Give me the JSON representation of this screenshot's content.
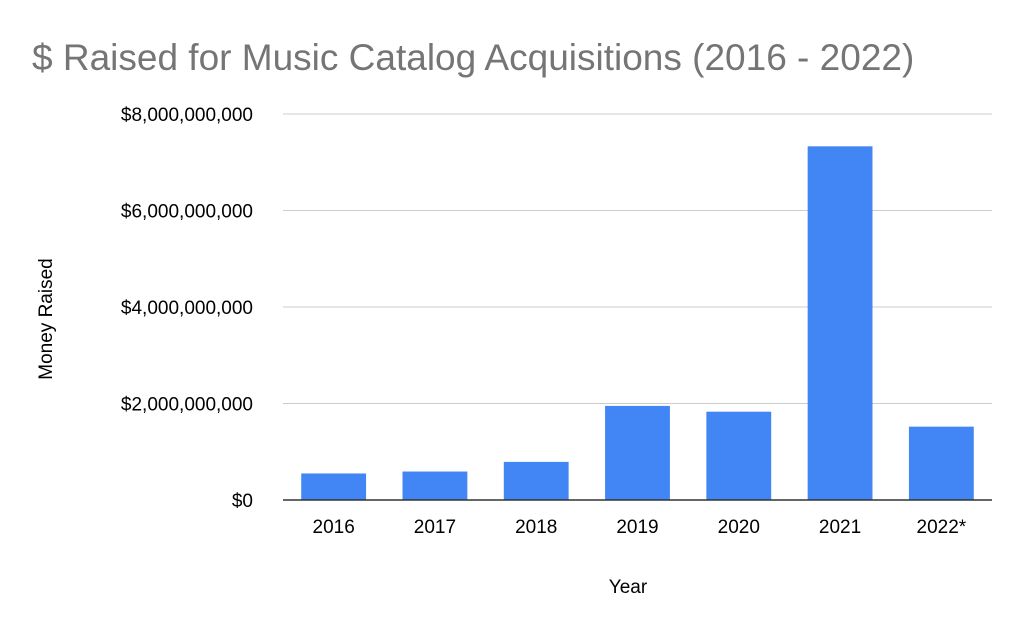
{
  "chart_data": {
    "type": "bar",
    "title": "$ Raised for Music Catalog Acquisitions (2016 - 2022)",
    "xlabel": "Year",
    "ylabel": "Money Raised",
    "categories": [
      "2016",
      "2017",
      "2018",
      "2019",
      "2020",
      "2021",
      "2022*"
    ],
    "series": [
      {
        "values": [
          550000000,
          590000000,
          790000000,
          1950000000,
          1830000000,
          7330000000,
          1520000000
        ]
      }
    ],
    "ylim": [
      0,
      8000000000
    ],
    "yticks": [
      0,
      2000000000,
      4000000000,
      6000000000,
      8000000000
    ],
    "ytick_labels": [
      "$0",
      "$2,000,000,000",
      "$4,000,000,000",
      "$6,000,000,000",
      "$8,000,000,000"
    ],
    "grid": true,
    "legend": "none",
    "bar_color": "#4285f4"
  }
}
